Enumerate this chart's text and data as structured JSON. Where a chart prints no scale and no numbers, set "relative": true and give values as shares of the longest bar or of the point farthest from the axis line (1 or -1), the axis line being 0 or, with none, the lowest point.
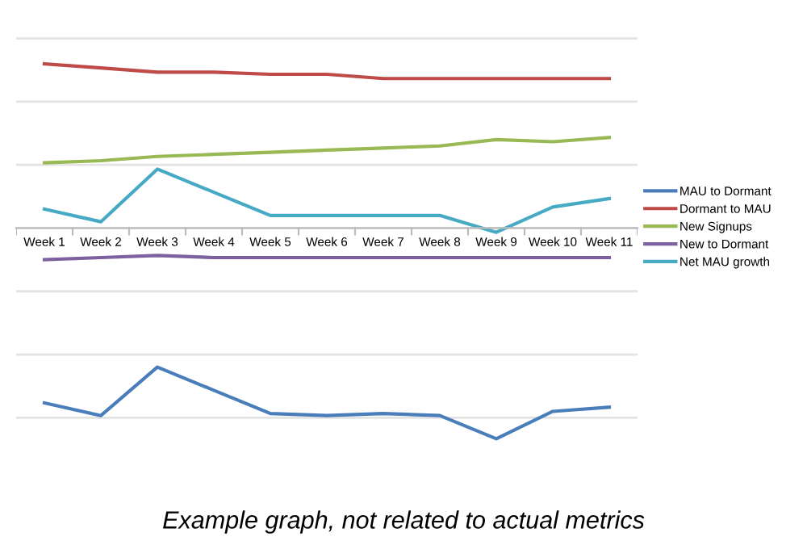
{
  "chart_data": {
    "type": "line",
    "relative": true,
    "grid": "y",
    "legend": "right",
    "categories": [
      "Week 1",
      "Week 2",
      "Week 3",
      "Week 4",
      "Week 5",
      "Week 6",
      "Week 7",
      "Week 8",
      "Week 9",
      "Week 10",
      "Week 11"
    ],
    "series": [
      {
        "name": "MAU to Dormant",
        "color": "#4a7ebb",
        "values": [
          -0.83,
          -0.89,
          -0.66,
          -0.77,
          -0.88,
          -0.89,
          -0.88,
          -0.89,
          -1,
          -0.87,
          -0.85
        ]
      },
      {
        "name": "Dormant to MAU",
        "color": "#be4b48",
        "values": [
          0.78,
          0.76,
          0.74,
          0.74,
          0.73,
          0.73,
          0.71,
          0.71,
          0.71,
          0.71,
          0.71
        ]
      },
      {
        "name": "New Signups",
        "color": "#98b954",
        "values": [
          0.31,
          0.32,
          0.34,
          0.35,
          0.36,
          0.37,
          0.38,
          0.39,
          0.42,
          0.41,
          0.43
        ]
      },
      {
        "name": "New to Dormant",
        "color": "#7d60a0",
        "values": [
          -0.15,
          -0.14,
          -0.13,
          -0.14,
          -0.14,
          -0.14,
          -0.14,
          -0.14,
          -0.14,
          -0.14,
          -0.14
        ]
      },
      {
        "name": "Net MAU growth",
        "color": "#46aac5",
        "values": [
          0.09,
          0.03,
          0.28,
          0.17,
          0.06,
          0.06,
          0.06,
          0.06,
          -0.02,
          0.1,
          0.14
        ]
      }
    ],
    "annotations": [
      "Example graph, not related to actual metrics"
    ]
  }
}
